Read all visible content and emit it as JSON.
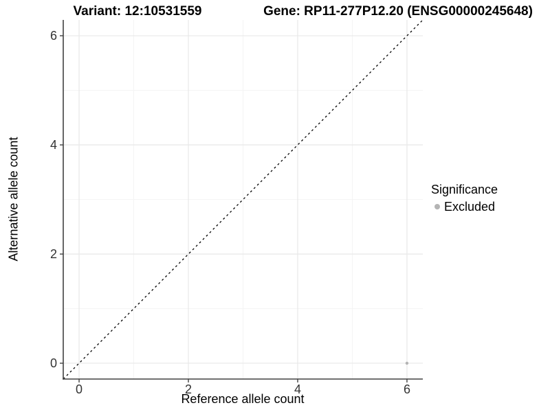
{
  "chart_data": {
    "type": "scatter",
    "title_left": "Variant: 12:10531559",
    "title_right": "Gene: RP11-277P12.20 (ENSG00000245648)",
    "xlabel": "Reference allele count",
    "ylabel": "Alternative allele count",
    "xlim": [
      -0.29,
      6.29
    ],
    "ylim": [
      -0.29,
      6.29
    ],
    "x_ticks": [
      0,
      2,
      4,
      6
    ],
    "y_ticks": [
      0,
      2,
      4,
      6
    ],
    "x_minor_ticks": [
      1,
      3,
      5
    ],
    "y_minor_ticks": [
      1,
      3,
      5
    ],
    "grid": "major+minor",
    "legend_position": "right",
    "identity_line": {
      "type": "y=x",
      "style": "dashed",
      "color": "#000000",
      "from": [
        -0.29,
        -0.29
      ],
      "to": [
        6.29,
        6.29
      ]
    },
    "series": [
      {
        "name": "Excluded",
        "color": "#b4b4b4",
        "marker": "circle",
        "points": [
          {
            "x": 6,
            "y": 0
          }
        ]
      }
    ],
    "legend": {
      "title": "Significance",
      "entries": [
        {
          "label": "Excluded",
          "color": "#b4b4b4"
        }
      ]
    },
    "colors": {
      "background": "#ffffff",
      "axis_line": "#404040",
      "grid_major": "#e8e8e8",
      "grid_minor": "#f4f4f4",
      "tick_label": "#333333",
      "point": "#b4b4b4"
    }
  }
}
